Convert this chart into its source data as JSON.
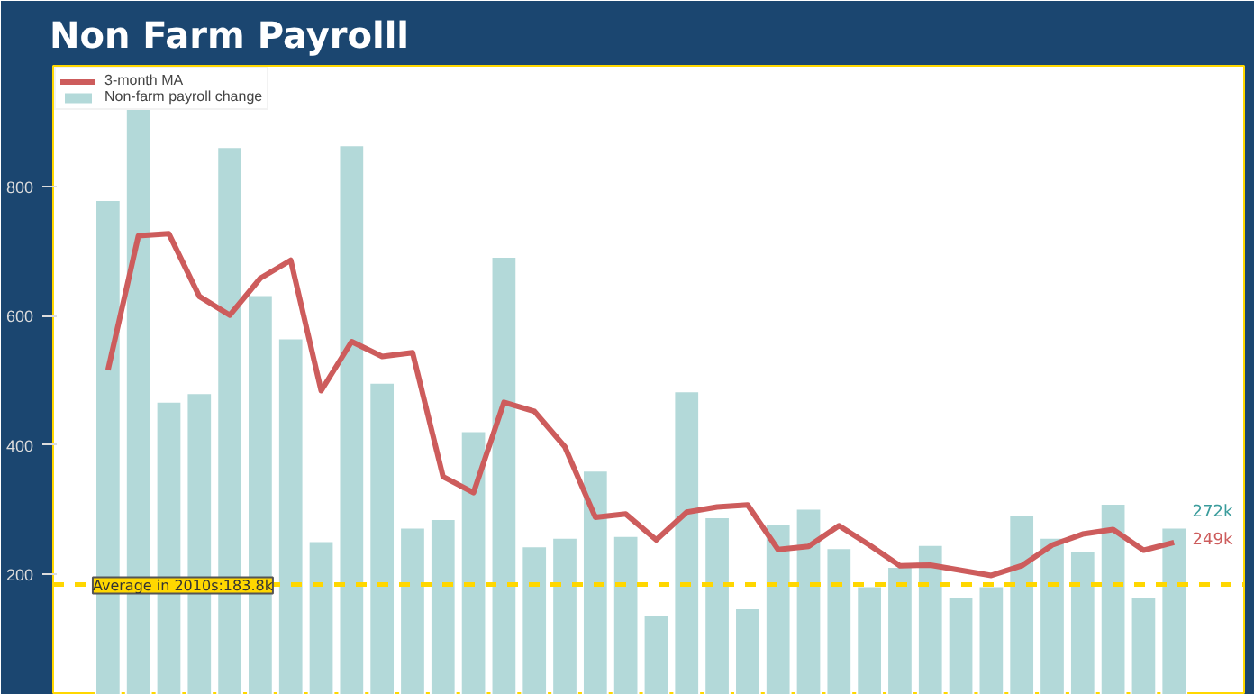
{
  "chart_data": {
    "type": "bar",
    "title": "Non Farm Payrolll",
    "categories": [
      null,
      null,
      null,
      null,
      null,
      null,
      null,
      null,
      null,
      null,
      null,
      null,
      null,
      null,
      null,
      null,
      null,
      null,
      null,
      null,
      null,
      null,
      null,
      null,
      null,
      null,
      null,
      null,
      null,
      null,
      null,
      null,
      null,
      null,
      null,
      null
    ],
    "series": [
      {
        "name": "Non-farm payroll change",
        "color": "#b3d9d9",
        "values": [
          779,
          920,
          467,
          480,
          861,
          632,
          565,
          251,
          864,
          496,
          272,
          285,
          421,
          691,
          243,
          256,
          360,
          259,
          136,
          483,
          288,
          147,
          277,
          301,
          240,
          181,
          211,
          245,
          165,
          181,
          291,
          256,
          235,
          309,
          165,
          272
        ]
      },
      {
        "name": "3-month MA",
        "type": "line",
        "color": "#cd5c5c",
        "values": [
          516,
          724,
          727,
          630,
          601,
          658,
          686,
          484,
          560,
          537,
          543,
          351,
          326,
          466,
          452,
          397,
          288,
          293,
          253,
          296,
          304,
          307,
          238,
          243,
          275,
          245,
          213,
          214,
          206,
          198,
          213,
          245,
          262,
          269,
          237,
          249
        ]
      }
    ],
    "ylim": [
      13,
      987
    ],
    "yticks": [
      200,
      400,
      600,
      800
    ],
    "grid": false,
    "legend": "top left",
    "tick_labels": "y",
    "ref_lines": [
      {
        "axis": "y",
        "value": 183.8,
        "label": "Average in 2010s:183.8k",
        "color": "#ffd700",
        "line_style": "dashed"
      }
    ],
    "annotations": [
      "272k",
      "249k"
    ]
  }
}
